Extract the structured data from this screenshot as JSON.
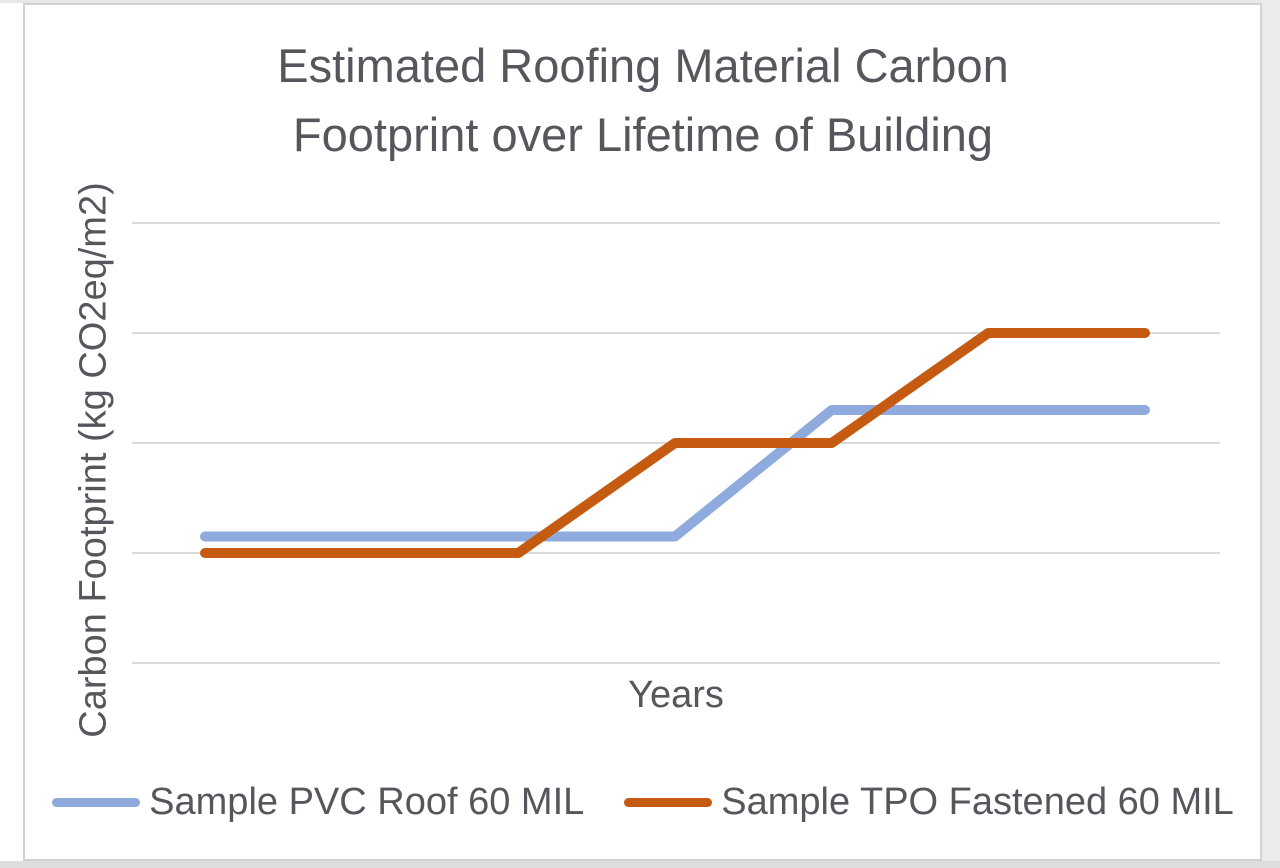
{
  "page": {
    "background": "#ffffff"
  },
  "frame": {
    "border_color": "#d2d2d2",
    "background": "#ffffff"
  },
  "colors": {
    "title_text": "#55575c",
    "axis_label_text": "#55575c",
    "legend_text": "#55575c",
    "gridline": "#d9d9d9"
  },
  "chart_data": {
    "type": "line",
    "title": "Estimated Roofing Material Carbon Footprint over Lifetime of Building",
    "title_lines": [
      "Estimated Roofing Material Carbon",
      "Footprint over Lifetime of Building"
    ],
    "xlabel": "Years",
    "ylabel": "Carbon Footprint (kg CO2eq/m2)",
    "x_point_count": 7,
    "x_tick_labels_shown": false,
    "y_tick_labels_shown": false,
    "y_gridline_values": [
      0,
      10,
      20,
      30,
      40
    ],
    "ylim": [
      0,
      40
    ],
    "grid": "horizontal-only",
    "legend_position": "bottom",
    "series": [
      {
        "name": "Sample PVC Roof 60 MIL",
        "color": "#8FAADC",
        "values": [
          11.5,
          11.5,
          11.5,
          11.5,
          23,
          23,
          23
        ]
      },
      {
        "name": "Sample TPO Fastened 60 MIL",
        "color": "#C55A11",
        "values": [
          10,
          10,
          10,
          20,
          20,
          30,
          30
        ]
      }
    ]
  }
}
